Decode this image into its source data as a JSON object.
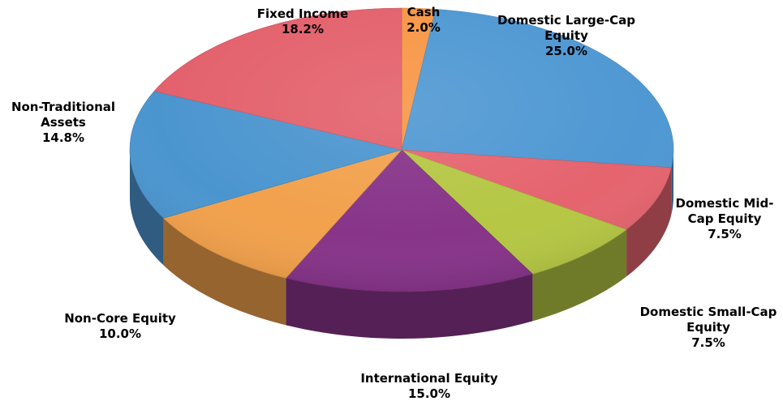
{
  "chart_data": {
    "type": "pie",
    "style": "3d-exploded-disc",
    "start_angle_deg": -90,
    "direction": "clockwise",
    "slices": [
      {
        "label_lines": [
          "Cash"
        ],
        "value_text": "2.0%",
        "value": 2.0,
        "color": "#F79646"
      },
      {
        "label_lines": [
          "Domestic Large-Cap",
          "Equity"
        ],
        "value_text": "25.0%",
        "value": 25.0,
        "color": "#4F98D3"
      },
      {
        "label_lines": [
          "Domestic Mid-",
          "Cap Equity"
        ],
        "value_text": "7.5%",
        "value": 7.5,
        "color": "#E5646E"
      },
      {
        "label_lines": [
          "Domestic Small-Cap",
          "Equity"
        ],
        "value_text": "7.5%",
        "value": 7.5,
        "color": "#B5C744"
      },
      {
        "label_lines": [
          "International Equity"
        ],
        "value_text": "15.0%",
        "value": 15.0,
        "color": "#873489"
      },
      {
        "label_lines": [
          "Non-Core Equity"
        ],
        "value_text": "10.0%",
        "value": 10.0,
        "color": "#F2A14C"
      },
      {
        "label_lines": [
          "Non-Traditional",
          "Assets"
        ],
        "value_text": "14.8%",
        "value": 14.8,
        "color": "#4B95CF"
      },
      {
        "label_lines": [
          "Fixed Income"
        ],
        "value_text": "18.2%",
        "value": 18.2,
        "color": "#E3616C"
      }
    ]
  }
}
